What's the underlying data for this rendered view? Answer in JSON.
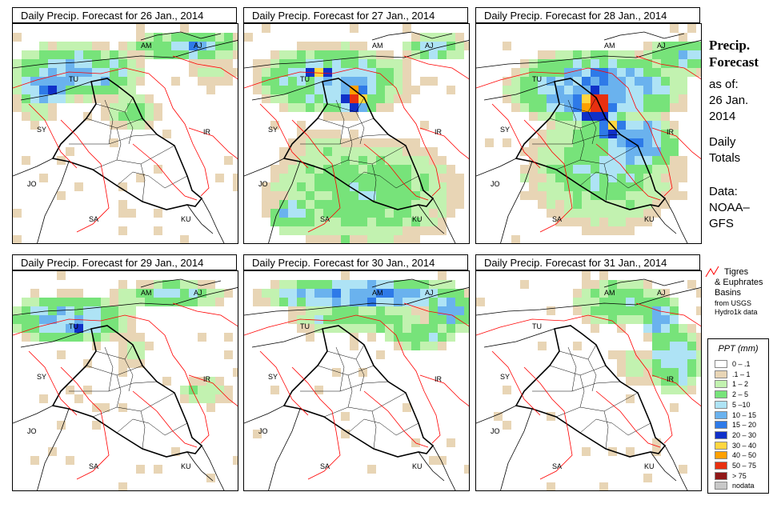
{
  "panels": [
    {
      "title": "Daily Precip. Forecast for  26 Jan., 2014"
    },
    {
      "title": "Daily Precip. Forecast for  27 Jan., 2014"
    },
    {
      "title": "Daily Precip. Forecast for  28 Jan., 2014"
    },
    {
      "title": "Daily Precip. Forecast for  29 Jan., 2014"
    },
    {
      "title": "Daily Precip. Forecast for  30 Jan., 2014"
    },
    {
      "title": "Daily Precip. Forecast for  31 Jan., 2014"
    }
  ],
  "country_labels": [
    "AM",
    "AJ",
    "TU",
    "SY",
    "IR",
    "JO",
    "SA",
    "KU"
  ],
  "side": {
    "title_line1": "Precip.",
    "title_line2": "Forecast",
    "asof_line1": "as of:",
    "asof_line2": "26 Jan.",
    "asof_line3": "2014",
    "totals_line1": "Daily",
    "totals_line2": "Totals",
    "data_line1": "Data:",
    "data_line2": "NOAA–",
    "data_line3": "GFS"
  },
  "basin_legend": {
    "line1": "Tigres",
    "line2": "& Euphrates",
    "line3": "Basins",
    "line4": "from USGS",
    "line5": "Hydro1k data",
    "line_color": "#ff0000"
  },
  "legend": {
    "title": "PPT (mm)",
    "classes": [
      {
        "label": "0 – .1",
        "color": "#ffffff"
      },
      {
        "label": ".1 – 1",
        "color": "#e8d5b5"
      },
      {
        "label": "1 – 2",
        "color": "#c2f2b0"
      },
      {
        "label": "2 – 5",
        "color": "#77e37a"
      },
      {
        "label": "5 –10",
        "color": "#aee3f5"
      },
      {
        "label": "10 – 15",
        "color": "#6ab2ee"
      },
      {
        "label": "15 – 20",
        "color": "#2e7ae8"
      },
      {
        "label": "20 – 30",
        "color": "#1030c8"
      },
      {
        "label": "30 – 40",
        "color": "#ffd640"
      },
      {
        "label": "40 – 50",
        "color": "#ffa000"
      },
      {
        "label": "50 – 75",
        "color": "#e83010"
      },
      {
        "label": "> 75",
        "color": "#901818"
      },
      {
        "label": "nodata",
        "color": "#c8c8c8"
      }
    ]
  }
}
